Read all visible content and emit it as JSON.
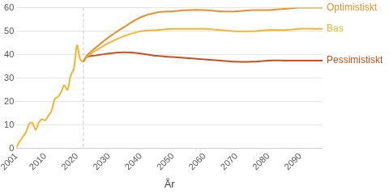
{
  "chart_data": {
    "type": "line",
    "x_label": "År",
    "x": [
      2001,
      2002,
      2003,
      2004,
      2005,
      2006,
      2007,
      2008,
      2009,
      2010,
      2011,
      2012,
      2013,
      2014,
      2015,
      2016,
      2017,
      2018,
      2019,
      2020,
      2021,
      2022,
      2023,
      2025,
      2030,
      2035,
      2040,
      2045,
      2050,
      2055,
      2060,
      2065,
      2070,
      2075,
      2080,
      2085,
      2090,
      2097
    ],
    "series": [
      {
        "name": "Optimistiskt",
        "color": "#e8912c",
        "values": [
          null,
          null,
          null,
          null,
          null,
          null,
          null,
          null,
          null,
          null,
          null,
          null,
          null,
          null,
          null,
          null,
          null,
          null,
          null,
          null,
          null,
          37,
          39.5,
          42,
          47.5,
          52,
          56,
          58,
          58.5,
          59,
          59,
          58.5,
          58.5,
          59,
          59,
          59.5,
          60,
          60
        ]
      },
      {
        "name": "Bas",
        "color": "#f7b52c",
        "values": [
          0.5,
          3,
          5,
          7,
          10.5,
          11,
          8,
          11,
          12.5,
          12,
          14,
          16,
          21,
          22,
          24,
          27,
          25,
          31,
          34,
          44,
          38,
          37,
          39,
          41,
          45,
          48,
          50,
          50.5,
          51,
          51,
          51,
          50.5,
          50,
          50,
          50.5,
          50.5,
          51,
          51
        ]
      },
      {
        "name": "Pessimistiskt",
        "color": "#c9501c",
        "values": [
          null,
          null,
          null,
          null,
          null,
          null,
          null,
          null,
          null,
          null,
          null,
          null,
          null,
          null,
          null,
          null,
          null,
          null,
          null,
          null,
          null,
          37,
          39,
          39.5,
          40.5,
          41,
          40.5,
          39.5,
          39,
          38.5,
          38,
          37.5,
          37,
          37,
          37.5,
          37.5,
          37.5,
          37.5
        ]
      }
    ],
    "vline": 2022,
    "xlim": [
      2001,
      2097
    ],
    "xticks": [
      2001,
      2010,
      2020,
      2030,
      2040,
      2050,
      2060,
      2070,
      2080,
      2090
    ],
    "ylim": [
      0,
      60
    ],
    "yticks": [
      0,
      10,
      20,
      30,
      40,
      50,
      60
    ],
    "grid": "y"
  }
}
